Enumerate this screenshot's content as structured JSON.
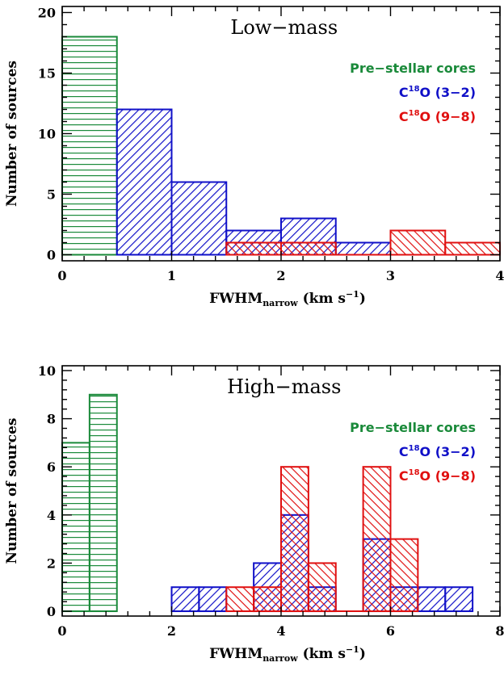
{
  "colors": {
    "pre_stellar": "#1a8a3a",
    "c18o_32": "#1010c8",
    "c18o_98": "#e01010",
    "axes": "#000000"
  },
  "chart_data": [
    {
      "type": "bar",
      "title": "Low−mass",
      "xlabel": {
        "main": "FWHM",
        "sub": "narrow",
        "unit_pre": " (km s",
        "unit_sup": "−1",
        "unit_post": ")"
      },
      "ylabel": "Number of sources",
      "xlim": [
        0,
        4
      ],
      "ylim": [
        -0.5,
        20.5
      ],
      "xticks": [
        0,
        1,
        2,
        3,
        4
      ],
      "xtick_labels": [
        "0",
        "1",
        "2",
        "3",
        "4"
      ],
      "yticks": [
        0,
        5,
        10,
        15,
        20
      ],
      "ytick_labels": [
        "0",
        "5",
        "10",
        "15",
        "20"
      ],
      "legend_position": "top-right",
      "series": [
        {
          "name": "Pre-stellar cores",
          "label_pre": "Pre−stellar cores",
          "label_sup": "",
          "label_post": "",
          "color_key": "pre_stellar",
          "hatch": "horizontal",
          "bin_width": 0.5,
          "bins": [
            {
              "x0": 0.0,
              "count": 18
            }
          ]
        },
        {
          "name": "C18O (3-2)",
          "label_pre": "C",
          "label_sup": "18",
          "label_post": "O (3−2)",
          "color_key": "c18o_32",
          "hatch": "forward",
          "bin_width": 0.5,
          "bins": [
            {
              "x0": 0.5,
              "count": 12
            },
            {
              "x0": 1.0,
              "count": 6
            },
            {
              "x0": 1.5,
              "count": 2
            },
            {
              "x0": 2.0,
              "count": 3
            },
            {
              "x0": 2.5,
              "count": 1
            }
          ]
        },
        {
          "name": "C18O (9-8)",
          "label_pre": "C",
          "label_sup": "18",
          "label_post": "O (9−8)",
          "color_key": "c18o_98",
          "hatch": "back",
          "bin_width": 0.5,
          "bins": [
            {
              "x0": 1.5,
              "count": 1
            },
            {
              "x0": 2.0,
              "count": 1
            },
            {
              "x0": 3.0,
              "count": 2
            },
            {
              "x0": 3.5,
              "count": 1
            }
          ]
        }
      ]
    },
    {
      "type": "bar",
      "title": "High−mass",
      "xlabel": {
        "main": "FWHM",
        "sub": "narrow",
        "unit_pre": " (km s",
        "unit_sup": "−1",
        "unit_post": ")"
      },
      "ylabel": "Number of sources",
      "xlim": [
        0,
        8
      ],
      "ylim": [
        -0.2,
        10.2
      ],
      "xticks": [
        0,
        2,
        4,
        6,
        8
      ],
      "xtick_labels": [
        "0",
        "2",
        "4",
        "6",
        "8"
      ],
      "yticks": [
        0,
        2,
        4,
        6,
        8,
        10
      ],
      "ytick_labels": [
        "0",
        "2",
        "4",
        "6",
        "8",
        "10"
      ],
      "legend_position": "top-right",
      "series": [
        {
          "name": "Pre-stellar cores",
          "label_pre": "Pre−stellar cores",
          "label_sup": "",
          "label_post": "",
          "color_key": "pre_stellar",
          "hatch": "horizontal",
          "bin_width": 0.5,
          "bins": [
            {
              "x0": 0.0,
              "count": 7
            },
            {
              "x0": 0.5,
              "count": 9
            }
          ]
        },
        {
          "name": "C18O (3-2)",
          "label_pre": "C",
          "label_sup": "18",
          "label_post": "O (3−2)",
          "color_key": "c18o_32",
          "hatch": "forward",
          "bin_width": 0.5,
          "bins": [
            {
              "x0": 2.0,
              "count": 1
            },
            {
              "x0": 2.5,
              "count": 1
            },
            {
              "x0": 3.5,
              "count": 2
            },
            {
              "x0": 4.0,
              "count": 4
            },
            {
              "x0": 4.5,
              "count": 1
            },
            {
              "x0": 5.5,
              "count": 3
            },
            {
              "x0": 6.0,
              "count": 1
            },
            {
              "x0": 6.5,
              "count": 1
            },
            {
              "x0": 7.0,
              "count": 1
            }
          ]
        },
        {
          "name": "C18O (9-8)",
          "label_pre": "C",
          "label_sup": "18",
          "label_post": "O (9−8)",
          "color_key": "c18o_98",
          "hatch": "back",
          "bin_width": 0.5,
          "bins": [
            {
              "x0": 3.0,
              "count": 1
            },
            {
              "x0": 3.5,
              "count": 1
            },
            {
              "x0": 4.0,
              "count": 6
            },
            {
              "x0": 4.5,
              "count": 2
            },
            {
              "x0": 5.5,
              "count": 6
            },
            {
              "x0": 6.0,
              "count": 3
            }
          ]
        }
      ]
    }
  ]
}
